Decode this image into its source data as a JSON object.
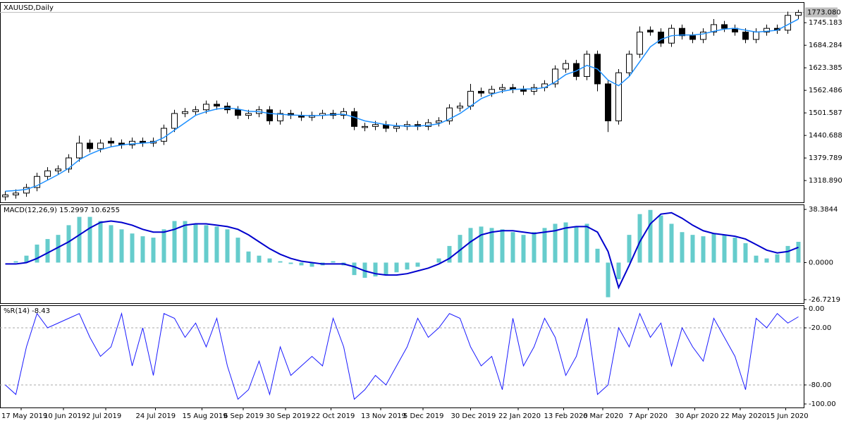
{
  "chart_data": [
    {
      "type": "candlestick",
      "title": "XAUUSD,Daily",
      "xlim": [
        -0.5,
        75.5
      ],
      "ylim": [
        1260,
        1797
      ],
      "yticks": [
        1745.183,
        1684.284,
        1623.385,
        1562.486,
        1501.587,
        1440.688,
        1379.789,
        {
          "value": 1318.89,
          "label": "1318.890"
        }
      ],
      "last_price": {
        "value": 1773.08,
        "label": "1773.080"
      },
      "up_color": "#ffffff",
      "down_color": "#000000",
      "open": [
        1275,
        1280,
        1285,
        1300,
        1330,
        1345,
        1350,
        1380,
        1420,
        1405,
        1425,
        1420,
        1415,
        1425,
        1420,
        1425,
        1460,
        1500,
        1505,
        1510,
        1525,
        1520,
        1510,
        1495,
        1500,
        1510,
        1480,
        1500,
        1495,
        1490,
        1495,
        1500,
        1495,
        1505,
        1462,
        1465,
        1470,
        1460,
        1465,
        1470,
        1465,
        1475,
        1480,
        1515,
        1520,
        1560,
        1555,
        1565,
        1570,
        1565,
        1560,
        1570,
        1580,
        1620,
        1635,
        1600,
        1660,
        1580,
        1480,
        1610,
        1660,
        1725,
        1720,
        1690,
        1730,
        1710,
        1700,
        1720,
        1740,
        1730,
        1720,
        1700,
        1720,
        1730,
        1725,
        1765
      ],
      "high": [
        1290,
        1295,
        1310,
        1340,
        1355,
        1360,
        1390,
        1440,
        1430,
        1430,
        1435,
        1430,
        1435,
        1435,
        1435,
        1470,
        1510,
        1515,
        1520,
        1535,
        1535,
        1530,
        1520,
        1510,
        1520,
        1520,
        1510,
        1510,
        1505,
        1505,
        1510,
        1510,
        1515,
        1515,
        1475,
        1480,
        1480,
        1475,
        1480,
        1480,
        1485,
        1490,
        1525,
        1530,
        1580,
        1570,
        1575,
        1580,
        1580,
        1575,
        1580,
        1590,
        1630,
        1645,
        1645,
        1670,
        1670,
        1590,
        1620,
        1670,
        1735,
        1735,
        1730,
        1740,
        1740,
        1720,
        1730,
        1755,
        1750,
        1740,
        1730,
        1730,
        1740,
        1740,
        1775,
        1780
      ],
      "low": [
        1265,
        1270,
        1275,
        1290,
        1320,
        1335,
        1340,
        1370,
        1395,
        1395,
        1410,
        1405,
        1405,
        1410,
        1410,
        1415,
        1450,
        1490,
        1495,
        1500,
        1510,
        1500,
        1485,
        1485,
        1490,
        1470,
        1470,
        1485,
        1480,
        1480,
        1485,
        1485,
        1485,
        1455,
        1452,
        1455,
        1450,
        1450,
        1455,
        1455,
        1455,
        1465,
        1470,
        1505,
        1510,
        1545,
        1545,
        1555,
        1555,
        1550,
        1550,
        1560,
        1570,
        1610,
        1590,
        1590,
        1560,
        1450,
        1470,
        1600,
        1650,
        1710,
        1680,
        1680,
        1700,
        1690,
        1690,
        1710,
        1720,
        1710,
        1690,
        1690,
        1710,
        1715,
        1715,
        1755
      ],
      "close": [
        1280,
        1285,
        1300,
        1330,
        1345,
        1350,
        1380,
        1420,
        1405,
        1420,
        1420,
        1415,
        1425,
        1420,
        1425,
        1460,
        1500,
        1505,
        1510,
        1525,
        1520,
        1510,
        1495,
        1500,
        1510,
        1480,
        1500,
        1495,
        1490,
        1495,
        1500,
        1495,
        1505,
        1465,
        1465,
        1470,
        1460,
        1465,
        1470,
        1465,
        1475,
        1480,
        1515,
        1520,
        1560,
        1555,
        1565,
        1570,
        1565,
        1560,
        1570,
        1580,
        1620,
        1635,
        1600,
        1660,
        1580,
        1480,
        1610,
        1660,
        1720,
        1720,
        1690,
        1730,
        1710,
        1700,
        1720,
        1740,
        1730,
        1720,
        1700,
        1720,
        1730,
        1725,
        1765,
        1773
      ],
      "ma": {
        "color": "#1e90ff",
        "values": [
          1290,
          1292,
          1295,
          1305,
          1320,
          1335,
          1352,
          1375,
          1390,
          1402,
          1410,
          1415,
          1418,
          1420,
          1422,
          1435,
          1455,
          1475,
          1495,
          1505,
          1512,
          1515,
          1512,
          1506,
          1505,
          1500,
          1498,
          1496,
          1495,
          1494,
          1495,
          1497,
          1498,
          1490,
          1480,
          1475,
          1470,
          1467,
          1466,
          1466,
          1468,
          1472,
          1485,
          1500,
          1520,
          1540,
          1552,
          1560,
          1565,
          1566,
          1566,
          1570,
          1585,
          1605,
          1615,
          1630,
          1620,
          1590,
          1575,
          1600,
          1640,
          1680,
          1700,
          1710,
          1712,
          1712,
          1715,
          1722,
          1728,
          1730,
          1725,
          1720,
          1722,
          1725,
          1740,
          1755
        ]
      }
    },
    {
      "type": "macd",
      "title": "MACD(12,26,9) 15.2997 10.6255",
      "xlim": [
        -0.5,
        75.5
      ],
      "ylim": [
        -29.28,
        41.97
      ],
      "yticks": [
        38.3844,
        {
          "value": 0,
          "label": "0.0000"
        },
        -26.7219
      ],
      "histogram": {
        "color": "#66cccc",
        "values": [
          0,
          1,
          5,
          13,
          17,
          20,
          27,
          33,
          33,
          30,
          27,
          24,
          21,
          19,
          18,
          24,
          30,
          30,
          28,
          27,
          26,
          24,
          18,
          8,
          5,
          3,
          1,
          -1,
          -2,
          -3,
          -2,
          1,
          -2,
          -9,
          -11,
          -10,
          -9,
          -7,
          -5,
          -3,
          0,
          3,
          12,
          20,
          25,
          26,
          25,
          24,
          22,
          20,
          22,
          25,
          28,
          29,
          26,
          28,
          10,
          -25,
          -12,
          20,
          35,
          38,
          34,
          28,
          22,
          20,
          19,
          21,
          20,
          18,
          14,
          5,
          3,
          6,
          12,
          15
        ]
      },
      "signal": {
        "color": "#0000cd",
        "values": [
          -1,
          -1,
          0,
          3,
          7,
          11,
          15,
          20,
          25,
          29,
          30,
          29,
          27,
          24,
          22,
          22,
          24,
          27,
          28,
          28,
          27,
          26,
          24,
          20,
          15,
          10,
          6,
          3,
          1,
          0,
          -1,
          -1,
          -1,
          -3,
          -6,
          -8,
          -9,
          -9,
          -8,
          -6,
          -4,
          -1,
          3,
          9,
          15,
          20,
          22,
          23,
          23,
          22,
          21,
          22,
          23,
          25,
          26,
          26,
          22,
          8,
          -18,
          -2,
          15,
          28,
          35,
          36,
          32,
          27,
          23,
          21,
          20,
          19,
          17,
          13,
          9,
          7,
          8,
          11
        ]
      }
    },
    {
      "type": "line",
      "title": "%R(14) -8.43",
      "xlim": [
        -0.5,
        75.5
      ],
      "ylim": [
        -103.7,
        3.7
      ],
      "yticks": [
        {
          "value": 0,
          "label": "0.00"
        },
        {
          "value": -20,
          "label": "-20.00"
        },
        {
          "value": -80,
          "label": "-80.00"
        },
        {
          "value": -100,
          "label": "-100.00"
        }
      ],
      "grid_levels": [
        -20,
        -80
      ],
      "color": "#1a1aff",
      "values": [
        -80,
        -90,
        -40,
        -5,
        -20,
        -15,
        -10,
        -5,
        -30,
        -50,
        -40,
        -5,
        -60,
        -20,
        -70,
        -5,
        -10,
        -30,
        -15,
        -40,
        -10,
        -60,
        -95,
        -85,
        -55,
        -90,
        -40,
        -70,
        -60,
        -50,
        -60,
        -10,
        -40,
        -95,
        -85,
        -70,
        -80,
        -60,
        -40,
        -10,
        -30,
        -20,
        -5,
        -10,
        -40,
        -60,
        -50,
        -85,
        -10,
        -60,
        -40,
        -10,
        -30,
        -70,
        -50,
        -10,
        -90,
        -80,
        -20,
        -40,
        -5,
        -30,
        -15,
        -60,
        -20,
        -40,
        -55,
        -10,
        -30,
        -50,
        -85,
        -10,
        -20,
        -5,
        -15,
        -8.43
      ],
      "xticks": [
        {
          "value": 1.5,
          "label": "17 May 2019"
        },
        {
          "value": 5.5,
          "label": "10 Jun 2019"
        },
        {
          "value": 9.5,
          "label": "2 Jul 2019"
        },
        {
          "value": 14.2,
          "label": "24 Jul 2019"
        },
        {
          "value": 18.6,
          "label": "15 Aug 2019"
        },
        {
          "value": 22.5,
          "label": "6 Sep 2019"
        },
        {
          "value": 26.5,
          "label": "30 Sep 2019"
        },
        {
          "value": 30.8,
          "label": "22 Oct 2019"
        },
        {
          "value": 35.5,
          "label": "13 Nov 2019"
        },
        {
          "value": 39.5,
          "label": "5 Dec 2019"
        },
        {
          "value": 44,
          "label": "30 Dec 2019"
        },
        {
          "value": 48.5,
          "label": "22 Jan 2020"
        },
        {
          "value": 52.8,
          "label": "13 Feb 2020"
        },
        {
          "value": 56.5,
          "label": "6 Mar 2020"
        },
        {
          "value": 60.8,
          "label": "7 Apr 2020"
        },
        {
          "value": 65.2,
          "label": "30 Apr 2020"
        },
        {
          "value": 69.5,
          "label": "22 May 2020"
        },
        {
          "value": 73.8,
          "label": "15 Jun 2020"
        }
      ]
    }
  ]
}
